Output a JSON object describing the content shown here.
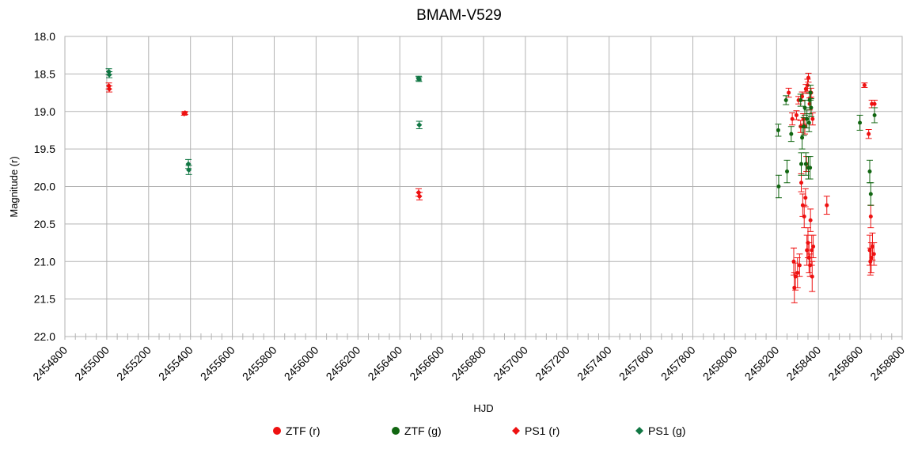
{
  "chart_data": {
    "type": "scatter",
    "title": "BMAM-V529",
    "xlabel": "HJD",
    "ylabel": "Magnitude (r)",
    "xlim": [
      2454800,
      2458800
    ],
    "ylim": [
      18.0,
      22.0
    ],
    "y_inverted": true,
    "x_tick_step": 200,
    "x_minor_step": 50,
    "y_tick_step": 0.5,
    "grid": true,
    "legend_position": "bottom",
    "x_tick_labels": [
      "2454800",
      "2455000",
      "2455200",
      "2455400",
      "2455600",
      "2455800",
      "2456000",
      "2456200",
      "2456400",
      "2456600",
      "2456800",
      "2457000",
      "2457200",
      "2457400",
      "2457600",
      "2457800",
      "2458000",
      "2458200",
      "2458400",
      "2458600",
      "2458800"
    ],
    "y_tick_labels": [
      "18.0",
      "18.5",
      "19.0",
      "19.5",
      "20.0",
      "20.5",
      "21.0",
      "21.5",
      "22.0"
    ],
    "series": [
      {
        "name": "ZTF (r)",
        "color": "#ee1111",
        "marker": "circle",
        "points": [
          [
            2458258,
            18.75,
            0.06
          ],
          [
            2458275,
            19.1,
            0.08
          ],
          [
            2458282,
            21.0,
            0.18
          ],
          [
            2458285,
            21.35,
            0.2
          ],
          [
            2458290,
            21.2,
            0.18
          ],
          [
            2458295,
            19.05,
            0.06
          ],
          [
            2458300,
            21.15,
            0.2
          ],
          [
            2458305,
            18.85,
            0.05
          ],
          [
            2458310,
            21.05,
            0.15
          ],
          [
            2458315,
            19.2,
            0.08
          ],
          [
            2458318,
            19.95,
            0.12
          ],
          [
            2458322,
            18.8,
            0.06
          ],
          [
            2458325,
            20.25,
            0.15
          ],
          [
            2458328,
            19.1,
            0.07
          ],
          [
            2458332,
            20.4,
            0.15
          ],
          [
            2458335,
            19.2,
            0.1
          ],
          [
            2458338,
            20.15,
            0.12
          ],
          [
            2458340,
            18.7,
            0.06
          ],
          [
            2458343,
            19.7,
            0.1
          ],
          [
            2458345,
            20.85,
            0.2
          ],
          [
            2458348,
            18.65,
            0.08
          ],
          [
            2458350,
            20.75,
            0.2
          ],
          [
            2458352,
            18.55,
            0.06
          ],
          [
            2458355,
            20.95,
            0.2
          ],
          [
            2458358,
            18.9,
            0.08
          ],
          [
            2458360,
            21.05,
            0.15
          ],
          [
            2458362,
            20.45,
            0.15
          ],
          [
            2458365,
            18.75,
            0.06
          ],
          [
            2458368,
            20.85,
            0.2
          ],
          [
            2458370,
            21.2,
            0.2
          ],
          [
            2458372,
            19.1,
            0.08
          ],
          [
            2458375,
            20.8,
            0.15
          ],
          [
            2458440,
            20.25,
            0.12
          ],
          [
            2458620,
            18.65,
            0.03
          ],
          [
            2458640,
            19.3,
            0.06
          ],
          [
            2458645,
            20.85,
            0.2
          ],
          [
            2458648,
            21.0,
            0.18
          ],
          [
            2458650,
            20.4,
            0.15
          ],
          [
            2458652,
            20.95,
            0.2
          ],
          [
            2458655,
            18.9,
            0.05
          ],
          [
            2458658,
            20.8,
            0.18
          ],
          [
            2458665,
            20.9,
            0.15
          ],
          [
            2458668,
            18.9,
            0.05
          ]
        ]
      },
      {
        "name": "ZTF (g)",
        "color": "#116611",
        "marker": "circle",
        "points": [
          [
            2458208,
            19.25,
            0.08
          ],
          [
            2458210,
            20.0,
            0.15
          ],
          [
            2458245,
            18.85,
            0.06
          ],
          [
            2458250,
            19.8,
            0.15
          ],
          [
            2458270,
            19.3,
            0.1
          ],
          [
            2458315,
            18.85,
            0.08
          ],
          [
            2458318,
            19.7,
            0.15
          ],
          [
            2458322,
            19.35,
            0.15
          ],
          [
            2458330,
            19.2,
            0.12
          ],
          [
            2458335,
            18.95,
            0.1
          ],
          [
            2458340,
            19.7,
            0.15
          ],
          [
            2458345,
            19.1,
            0.12
          ],
          [
            2458352,
            19.75,
            0.15
          ],
          [
            2458355,
            19.15,
            0.12
          ],
          [
            2458358,
            18.85,
            0.1
          ],
          [
            2458360,
            19.75,
            0.15
          ],
          [
            2458362,
            18.75,
            0.1
          ],
          [
            2458365,
            18.95,
            0.12
          ],
          [
            2458598,
            19.15,
            0.1
          ],
          [
            2458645,
            19.8,
            0.15
          ],
          [
            2458650,
            20.1,
            0.15
          ],
          [
            2458668,
            19.05,
            0.1
          ]
        ]
      },
      {
        "name": "PS1 (r)",
        "color": "#ee1111",
        "marker": "diamond",
        "points": [
          [
            2455010,
            18.66,
            0.04
          ],
          [
            2455012,
            18.7,
            0.04
          ],
          [
            2455370,
            19.03,
            0.02
          ],
          [
            2455374,
            19.02,
            0.02
          ],
          [
            2456490,
            20.08,
            0.05
          ],
          [
            2456494,
            20.13,
            0.05
          ]
        ]
      },
      {
        "name": "PS1 (g)",
        "color": "#117744",
        "marker": "diamond",
        "points": [
          [
            2455010,
            18.47,
            0.04
          ],
          [
            2455012,
            18.51,
            0.04
          ],
          [
            2455390,
            19.7,
            0.06
          ],
          [
            2455392,
            19.78,
            0.06
          ],
          [
            2456490,
            18.56,
            0.03
          ],
          [
            2456492,
            18.57,
            0.03
          ],
          [
            2456493,
            19.18,
            0.05
          ]
        ]
      }
    ]
  }
}
